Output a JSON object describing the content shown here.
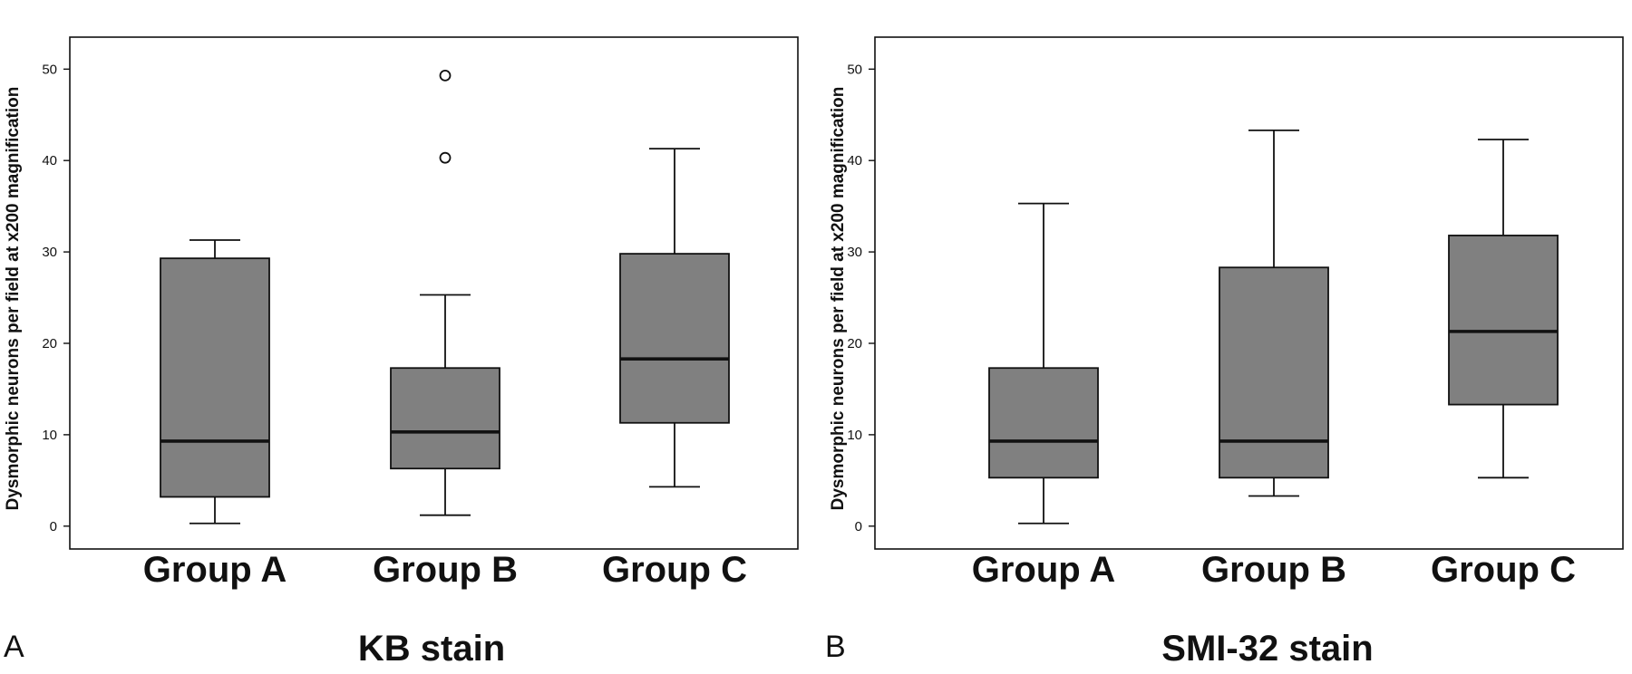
{
  "chart_data": [
    {
      "type": "box",
      "panel_letter": "A",
      "title": "KB stain",
      "ylabel": "Dysmorphic neurons per field at x200 magnification",
      "ylim": [
        -2.5,
        53.5
      ],
      "yticks": [
        0,
        10,
        20,
        30,
        40,
        50
      ],
      "grid": false,
      "categories": [
        "Group A",
        "Group B",
        "Group C"
      ],
      "boxes": [
        {
          "whisker_low": 0.3,
          "q1": 3.2,
          "median": 9.3,
          "q3": 29.3,
          "whisker_high": 31.3,
          "outliers": []
        },
        {
          "whisker_low": 1.2,
          "q1": 6.3,
          "median": 10.3,
          "q3": 17.3,
          "whisker_high": 25.3,
          "outliers": [
            40.3,
            49.3
          ]
        },
        {
          "whisker_low": 4.3,
          "q1": 11.3,
          "median": 18.3,
          "q3": 29.8,
          "whisker_high": 41.3,
          "outliers": []
        }
      ]
    },
    {
      "type": "box",
      "panel_letter": "B",
      "title": "SMI-32 stain",
      "ylabel": "Dysmorphic neurons per field at x200 magnification",
      "ylim": [
        -2.5,
        53.5
      ],
      "yticks": [
        0,
        10,
        20,
        30,
        40,
        50
      ],
      "grid": false,
      "categories": [
        "Group A",
        "Group B",
        "Group C"
      ],
      "boxes": [
        {
          "whisker_low": 0.3,
          "q1": 5.3,
          "median": 9.3,
          "q3": 17.3,
          "whisker_high": 35.3,
          "outliers": []
        },
        {
          "whisker_low": 3.3,
          "q1": 5.3,
          "median": 9.3,
          "q3": 28.3,
          "whisker_high": 43.3,
          "outliers": []
        },
        {
          "whisker_low": 5.3,
          "q1": 13.3,
          "median": 21.3,
          "q3": 31.8,
          "whisker_high": 42.3,
          "outliers": []
        }
      ]
    }
  ],
  "colors": {
    "box_fill": "#808080",
    "line": "#111111",
    "outlier_fill": "#ffffff"
  }
}
